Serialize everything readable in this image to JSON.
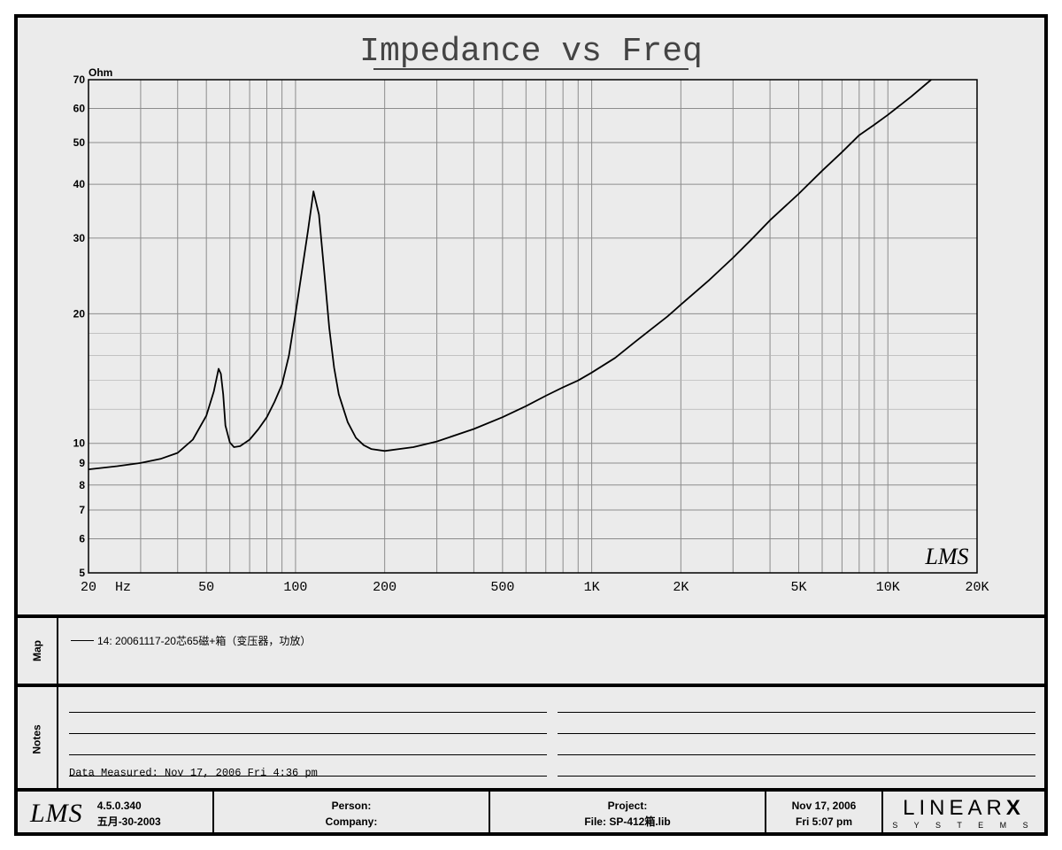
{
  "chart_data": {
    "type": "line",
    "title": "Impedance vs Freq",
    "ylabel": "Ohm",
    "xlabel": "Hz",
    "x_scale": "log",
    "y_scale": "log",
    "xlim": [
      20,
      20000
    ],
    "ylim": [
      5,
      70
    ],
    "x_ticks": [
      {
        "v": 20,
        "label": "20"
      },
      {
        "v": 50,
        "label": "50"
      },
      {
        "v": 100,
        "label": "100"
      },
      {
        "v": 200,
        "label": "200"
      },
      {
        "v": 500,
        "label": "500"
      },
      {
        "v": 1000,
        "label": "1K"
      },
      {
        "v": 2000,
        "label": "2K"
      },
      {
        "v": 5000,
        "label": "5K"
      },
      {
        "v": 10000,
        "label": "10K"
      },
      {
        "v": 20000,
        "label": "20K"
      }
    ],
    "y_ticks": [
      {
        "v": 5,
        "label": "5"
      },
      {
        "v": 6,
        "label": "6"
      },
      {
        "v": 7,
        "label": "7"
      },
      {
        "v": 8,
        "label": "8"
      },
      {
        "v": 9,
        "label": "9"
      },
      {
        "v": 10,
        "label": "10"
      },
      {
        "v": 20,
        "label": "20"
      },
      {
        "v": 30,
        "label": "30"
      },
      {
        "v": 40,
        "label": "40"
      },
      {
        "v": 50,
        "label": "50"
      },
      {
        "v": 60,
        "label": "60"
      },
      {
        "v": 70,
        "label": "70"
      }
    ],
    "grid": true,
    "series": [
      {
        "name": "14: 20061117-20芯65磁+箱（变压器，功放）",
        "color": "#000000",
        "points": [
          [
            20,
            8.7
          ],
          [
            25,
            8.85
          ],
          [
            30,
            9.0
          ],
          [
            35,
            9.2
          ],
          [
            40,
            9.5
          ],
          [
            45,
            10.2
          ],
          [
            50,
            11.6
          ],
          [
            53,
            13.2
          ],
          [
            55,
            14.9
          ],
          [
            56,
            14.5
          ],
          [
            57,
            13.0
          ],
          [
            58,
            11.0
          ],
          [
            60,
            10.05
          ],
          [
            62,
            9.8
          ],
          [
            65,
            9.85
          ],
          [
            70,
            10.2
          ],
          [
            75,
            10.8
          ],
          [
            80,
            11.5
          ],
          [
            85,
            12.5
          ],
          [
            90,
            13.7
          ],
          [
            95,
            16.0
          ],
          [
            100,
            20.0
          ],
          [
            105,
            25.0
          ],
          [
            110,
            31.0
          ],
          [
            115,
            38.5
          ],
          [
            120,
            34.0
          ],
          [
            125,
            25.0
          ],
          [
            130,
            18.5
          ],
          [
            135,
            15.0
          ],
          [
            140,
            13.0
          ],
          [
            150,
            11.2
          ],
          [
            160,
            10.3
          ],
          [
            170,
            9.9
          ],
          [
            180,
            9.7
          ],
          [
            200,
            9.6
          ],
          [
            250,
            9.8
          ],
          [
            300,
            10.1
          ],
          [
            400,
            10.8
          ],
          [
            500,
            11.5
          ],
          [
            600,
            12.2
          ],
          [
            700,
            12.9
          ],
          [
            800,
            13.5
          ],
          [
            900,
            14.0
          ],
          [
            1000,
            14.6
          ],
          [
            1200,
            15.8
          ],
          [
            1400,
            17.2
          ],
          [
            1600,
            18.5
          ],
          [
            1800,
            19.7
          ],
          [
            2000,
            21.0
          ],
          [
            2500,
            24.0
          ],
          [
            3000,
            27.0
          ],
          [
            3500,
            30.0
          ],
          [
            4000,
            33.0
          ],
          [
            5000,
            38.0
          ],
          [
            6000,
            43.0
          ],
          [
            7000,
            47.5
          ],
          [
            8000,
            52.0
          ],
          [
            9000,
            55.0
          ],
          [
            10000,
            58.0
          ],
          [
            12000,
            64.0
          ],
          [
            14000,
            70.0
          ]
        ]
      }
    ]
  },
  "map": {
    "label": "Map",
    "entry": "14: 20061117-20芯65磁+箱（变压器，功放）"
  },
  "notes": {
    "label": "Notes",
    "measured": "Data Measured: Nov 17, 2006  Fri  4:36 pm"
  },
  "footer": {
    "logo": "LMS",
    "version": "4.5.0.340",
    "version_date": "五月-30-2003",
    "person": "Person:",
    "company": "Company:",
    "project": "Project:",
    "file": "File: SP-412箱.lib",
    "date": "Nov 17, 2006",
    "time": "Fri  5:07 pm",
    "brand": "LINEAR",
    "brand_x": "X",
    "brand_sub": "S Y S T E M S"
  },
  "watermark": "LMS"
}
